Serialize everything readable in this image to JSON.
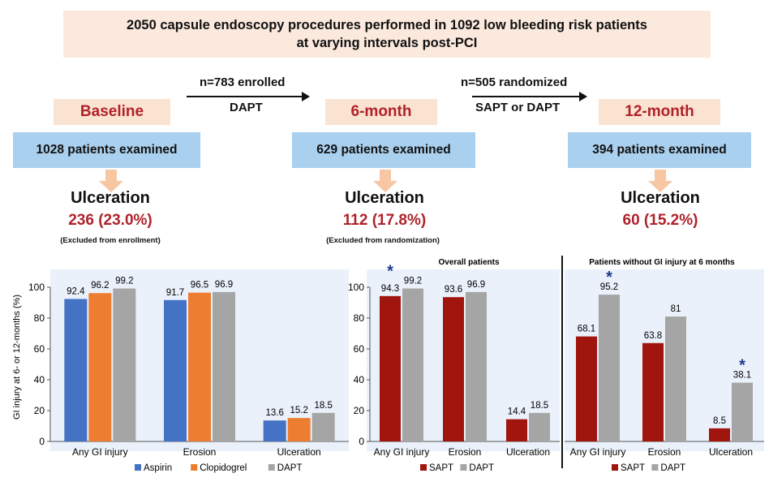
{
  "title": {
    "line1": "2050 capsule endoscopy procedures performed in 1092 low bleeding risk patients",
    "line2": "at varying intervals post-PCI"
  },
  "flow": {
    "arrow1_top": "n=783 enrolled",
    "arrow1_bottom": "DAPT",
    "arrow2_top": "n=505 randomized",
    "arrow2_bottom": "SAPT or DAPT",
    "stages": [
      {
        "label": "Baseline",
        "examined": "1028 patients examined",
        "ulc_title": "Ulceration",
        "ulc_value": "236 (23.0%)",
        "note": "(Excluded from enrollment)"
      },
      {
        "label": "6-month",
        "examined": "629 patients examined",
        "ulc_title": "Ulceration",
        "ulc_value": "112 (17.8%)",
        "note": "(Excluded from randomization)"
      },
      {
        "label": "12-month",
        "examined": "394 patients examined",
        "ulc_title": "Ulceration",
        "ulc_value": "60 (15.2%)",
        "note": ""
      }
    ]
  },
  "colors": {
    "aspirin": "#4472c4",
    "clopidogrel": "#ed7d31",
    "dapt": "#a5a5a5",
    "sapt": "#a0160e",
    "panel_bg": "#eaf1fb",
    "star": "#1f3a8a",
    "stage_text": "#b0222a"
  },
  "chart_data": [
    {
      "type": "bar",
      "title": "",
      "ylabel": "GI injury at 6- or 12-months (%)",
      "ylim": [
        0,
        100
      ],
      "yticks": [
        0,
        20,
        40,
        60,
        80,
        100
      ],
      "categories": [
        "Any GI injury",
        "Erosion",
        "Ulceration"
      ],
      "series": [
        {
          "name": "Aspirin",
          "values": [
            92.4,
            91.7,
            13.6
          ]
        },
        {
          "name": "Clopidogrel",
          "values": [
            96.2,
            96.5,
            15.2
          ]
        },
        {
          "name": "DAPT",
          "values": [
            99.2,
            96.9,
            18.5
          ]
        }
      ],
      "labels": [
        [
          "92.4",
          "91.7",
          "13.6"
        ],
        [
          "96.2",
          "96.5",
          "15.2"
        ],
        [
          "99.2",
          "96.9",
          "18.5"
        ]
      ],
      "legend": "bottom"
    },
    {
      "type": "bar",
      "title": "Overall patients",
      "ylim": [
        0,
        100
      ],
      "yticks": [
        0,
        20,
        40,
        60,
        80,
        100
      ],
      "categories": [
        "Any GI injury",
        "Erosion",
        "Ulceration"
      ],
      "series": [
        {
          "name": "SAPT",
          "values": [
            94.3,
            93.6,
            14.4
          ]
        },
        {
          "name": "DAPT",
          "values": [
            99.2,
            96.9,
            18.5
          ]
        }
      ],
      "labels": [
        [
          "94.3",
          "93.6",
          "14.4"
        ],
        [
          "99.2",
          "96.9",
          "18.5"
        ]
      ],
      "significance": [
        "*",
        "",
        ""
      ],
      "legend": "bottom"
    },
    {
      "type": "bar",
      "title": "Patients without GI injury at 6 months",
      "ylim": [
        0,
        100
      ],
      "categories": [
        "Any GI injury",
        "Erosion",
        "Ulceration"
      ],
      "series": [
        {
          "name": "SAPT",
          "values": [
            68.1,
            63.8,
            8.5
          ]
        },
        {
          "name": "DAPT",
          "values": [
            95.2,
            81,
            38.1
          ]
        }
      ],
      "labels": [
        [
          "68.1",
          "63.8",
          "8.5"
        ],
        [
          "95.2",
          "81",
          "38.1"
        ]
      ],
      "significance": [
        "*",
        "",
        "*"
      ],
      "legend": "bottom"
    }
  ]
}
